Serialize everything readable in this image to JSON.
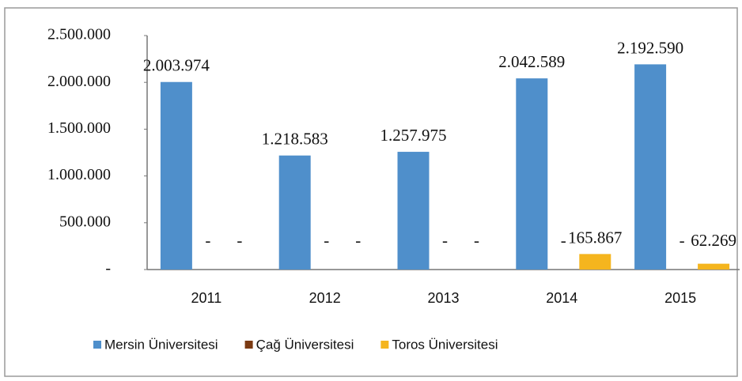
{
  "chart_data": {
    "type": "bar",
    "categories": [
      "2011",
      "2012",
      "2013",
      "2014",
      "2015"
    ],
    "series": [
      {
        "name": "Mersin Üniversitesi",
        "color": "#4f8fcb",
        "values": [
          2003974,
          1218583,
          1257975,
          2042589,
          2192590
        ],
        "value_labels": [
          "2.003.974",
          "1.218.583",
          "1.257.975",
          "2.042.589",
          "2.192.590"
        ]
      },
      {
        "name": "Çağ Üniversitesi",
        "color": "#7b3a12",
        "values": [
          0,
          0,
          0,
          0,
          0
        ],
        "value_labels": [
          "-",
          "-",
          "-",
          "-",
          "-"
        ]
      },
      {
        "name": "Toros Üniversitesi",
        "color": "#f5b51e",
        "values": [
          0,
          0,
          0,
          165867,
          62269
        ],
        "value_labels": [
          "-",
          "-",
          "-",
          "165.867",
          "62.269"
        ]
      }
    ],
    "ylim": [
      0,
      2500000
    ],
    "yticks": [
      {
        "value": 0,
        "label": "-"
      },
      {
        "value": 500000,
        "label": "500.000"
      },
      {
        "value": 1000000,
        "label": "1.000.000"
      },
      {
        "value": 1500000,
        "label": "1.500.000"
      },
      {
        "value": 2000000,
        "label": "2.000.000"
      },
      {
        "value": 2500000,
        "label": "2.500.000"
      }
    ],
    "grid": false,
    "legend": "bottom"
  }
}
